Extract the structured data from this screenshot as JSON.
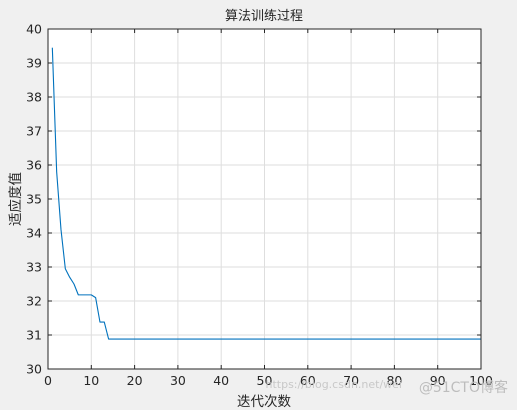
{
  "chart_data": {
    "type": "line",
    "title": "算法训练过程",
    "xlabel": "迭代次数",
    "ylabel": "适应度值",
    "xlim": [
      0,
      100
    ],
    "ylim": [
      30,
      40
    ],
    "xticks": [
      0,
      10,
      20,
      30,
      40,
      50,
      60,
      70,
      80,
      90,
      100
    ],
    "yticks": [
      30,
      31,
      32,
      33,
      34,
      35,
      36,
      37,
      38,
      39,
      40
    ],
    "grid": true,
    "series": [
      {
        "color": "#0072bd",
        "x": [
          1,
          2,
          3,
          4,
          5,
          6,
          7,
          8,
          9,
          10,
          11,
          12,
          13,
          14,
          15,
          20,
          30,
          40,
          50,
          60,
          70,
          80,
          90,
          100
        ],
        "y": [
          39.45,
          35.8,
          34.1,
          32.95,
          32.7,
          32.5,
          32.18,
          32.18,
          32.18,
          32.18,
          32.1,
          31.38,
          31.38,
          30.88,
          30.88,
          30.88,
          30.88,
          30.88,
          30.88,
          30.88,
          30.88,
          30.88,
          30.88,
          30.88
        ]
      }
    ]
  },
  "watermark": {
    "url_text": "https://blog.csdn.net/wei",
    "brand_text": "@51CTO博客"
  }
}
